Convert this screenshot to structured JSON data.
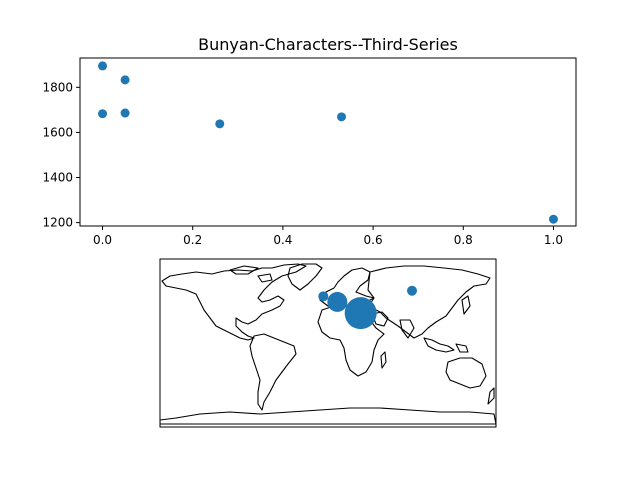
{
  "chart_data": [
    {
      "type": "scatter",
      "title": "Bunyan-Characters--Third-Series",
      "xlabel": "",
      "ylabel": "",
      "xlim": [
        -0.05,
        1.05
      ],
      "ylim": [
        1185,
        1930
      ],
      "xticks": [
        "0.0",
        "0.2",
        "0.4",
        "0.6",
        "0.8",
        "1.0"
      ],
      "yticks": [
        "1200",
        "1400",
        "1600",
        "1800"
      ],
      "grid": false,
      "marker_color": "#1f77b4",
      "points": [
        {
          "x": 0.0,
          "y": 1895
        },
        {
          "x": 0.0,
          "y": 1683
        },
        {
          "x": 0.05,
          "y": 1833
        },
        {
          "x": 0.05,
          "y": 1686
        },
        {
          "x": 0.26,
          "y": 1638
        },
        {
          "x": 0.53,
          "y": 1669
        },
        {
          "x": 1.0,
          "y": 1215
        }
      ]
    },
    {
      "type": "map",
      "projection": "equirectangular",
      "description": "world coastline map with circle markers sized by value",
      "marker_color": "#1f77b4",
      "points": [
        {
          "lon": 35,
          "lat": 32,
          "size": "large"
        },
        {
          "lon": 10,
          "lat": 44,
          "size": "medium"
        },
        {
          "lon": -5,
          "lat": 50,
          "size": "small"
        },
        {
          "lon": 90,
          "lat": 56,
          "size": "small"
        }
      ]
    }
  ]
}
